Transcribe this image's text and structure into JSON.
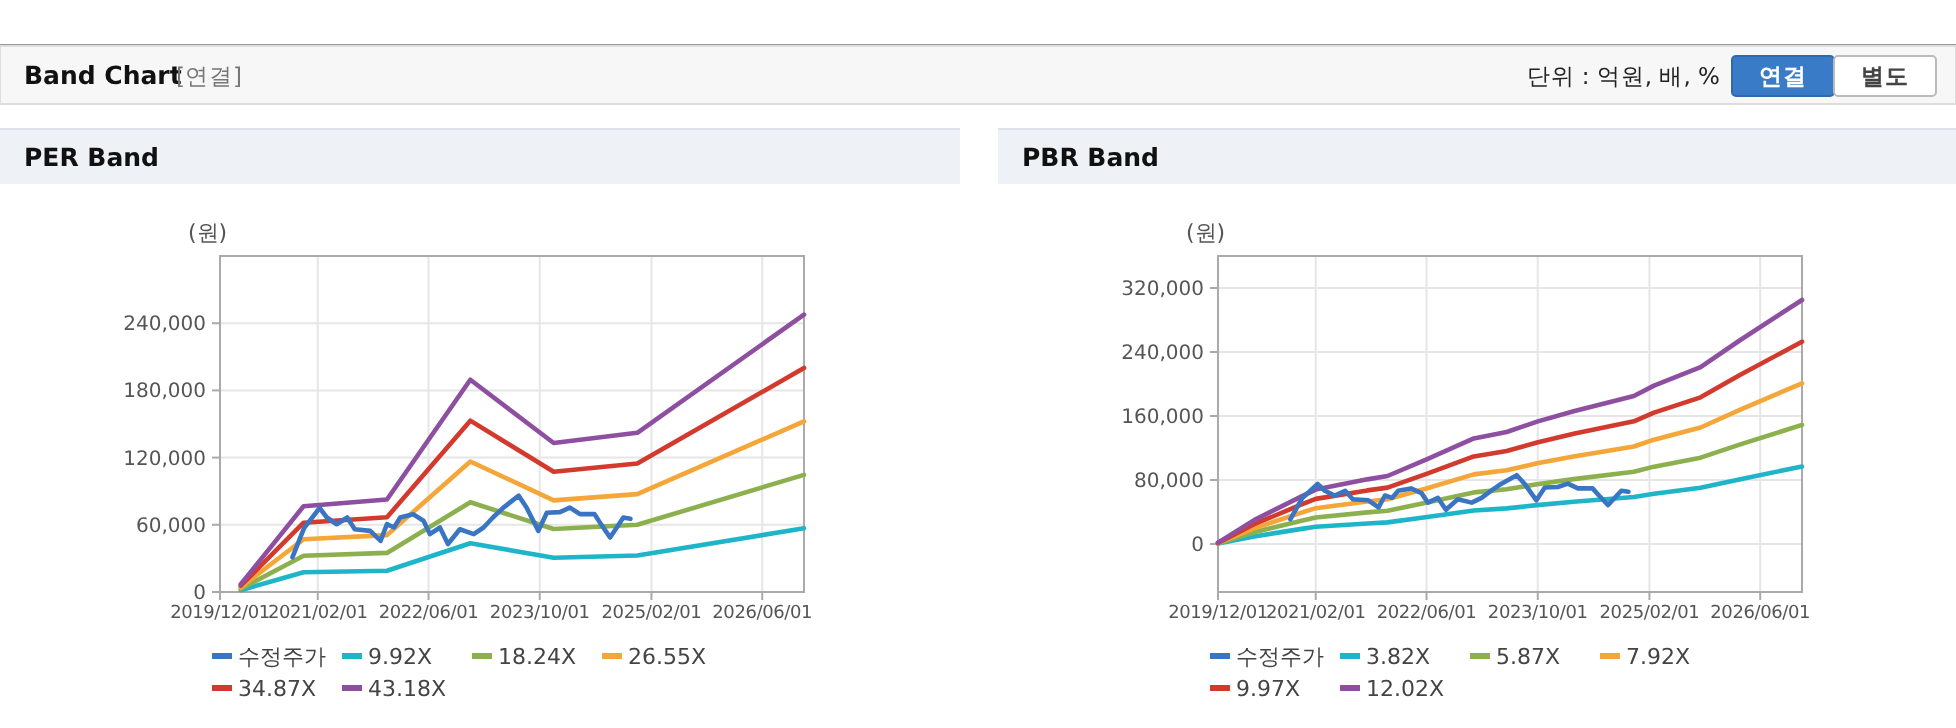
{
  "chart_data": [
    {
      "type": "other",
      "title": "Band Chart",
      "subtitle": "[연결]",
      "annotations": [
        "단위 : 억원, 배, %",
        "연결",
        "별도"
      ]
    },
    {
      "type": "line",
      "title": "PER Band",
      "ylabel": "(원)",
      "xlim": [
        "2019-12-01",
        "2026-12-01"
      ],
      "xticks": [
        {
          "value": "2019-12-01",
          "label": "2019/12/01"
        },
        {
          "value": "2021-02-01",
          "label": "2021/02/01"
        },
        {
          "value": "2022-06-01",
          "label": "2022/06/01"
        },
        {
          "value": "2023-10-01",
          "label": "2023/10/01"
        },
        {
          "value": "2025-02-01",
          "label": "2025/02/01"
        },
        {
          "value": "2026-06-01",
          "label": "2026/06/01"
        }
      ],
      "ylim": [
        0,
        300000
      ],
      "yticks": [
        0,
        {
          "value": 60000,
          "label": "60,000"
        },
        {
          "value": 120000,
          "label": "120,000"
        },
        {
          "value": 180000,
          "label": "180,000"
        },
        {
          "value": 240000,
          "label": "240,000"
        }
      ],
      "grid": true,
      "legend": "bottom",
      "series": [
        {
          "name": "수정주가",
          "color": "#3a75c4",
          "x": [
            "2020-10-13",
            "2020-12-03",
            "2021-02-09",
            "2021-03-13",
            "2021-04-25",
            "2021-06-10",
            "2021-07-13",
            "2021-09-19",
            "2021-11-03",
            "2021-12-01",
            "2022-01-01",
            "2022-01-28",
            "2022-03-25",
            "2022-05-10",
            "2022-06-07",
            "2022-07-21",
            "2022-08-25",
            "2022-10-16",
            "2022-12-16",
            "2023-01-28",
            "2023-03-10",
            "2023-04-25",
            "2023-07-01",
            "2023-08-04",
            "2023-09-25",
            "2023-11-01",
            "2023-12-28",
            "2024-02-10",
            "2024-03-25",
            "2024-05-28",
            "2024-06-25",
            "2024-08-04",
            "2024-10-01",
            "2024-11-01"
          ],
          "values": [
            31000,
            57000,
            75000,
            66500,
            60500,
            66500,
            56000,
            54600,
            45700,
            60600,
            57600,
            66500,
            69500,
            63600,
            51700,
            57600,
            42800,
            56000,
            51700,
            57600,
            66500,
            75400,
            86000,
            75400,
            54600,
            70700,
            71300,
            75400,
            69500,
            69500,
            60600,
            48700,
            66500,
            65300
          ]
        },
        {
          "name": "9.92X",
          "color": "#1fb5c9",
          "x": [
            "2020-03-01",
            "2020-12-01",
            "2021-12-01",
            "2022-12-01",
            "2023-12-01",
            "2024-12-01",
            "2026-12-01"
          ],
          "values": [
            1600,
            17600,
            19000,
            43500,
            30600,
            32600,
            56900
          ]
        },
        {
          "name": "18.24X",
          "color": "#8db04f",
          "x": [
            "2020-03-01",
            "2020-12-01",
            "2021-12-01",
            "2022-12-01",
            "2023-12-01",
            "2024-12-01",
            "2026-12-01"
          ],
          "values": [
            2900,
            32400,
            34900,
            80100,
            56200,
            60000,
            104600
          ]
        },
        {
          "name": "26.55X",
          "color": "#f5a638",
          "x": [
            "2020-03-01",
            "2020-12-01",
            "2021-12-01",
            "2022-12-01",
            "2023-12-01",
            "2024-12-01",
            "2026-12-01"
          ],
          "values": [
            4200,
            47100,
            50800,
            116500,
            81800,
            87400,
            152300
          ]
        },
        {
          "name": "34.87X",
          "color": "#d33a2e",
          "x": [
            "2020-03-01",
            "2020-12-01",
            "2021-12-01",
            "2022-12-01",
            "2023-12-01",
            "2024-12-01",
            "2026-12-01"
          ],
          "values": [
            5600,
            61900,
            66700,
            153000,
            107400,
            114700,
            200000
          ]
        },
        {
          "name": "43.18X",
          "color": "#8e4fa0",
          "x": [
            "2020-03-01",
            "2020-12-01",
            "2021-12-01",
            "2022-12-01",
            "2023-12-01",
            "2024-12-01",
            "2026-12-01"
          ],
          "values": [
            6900,
            76600,
            82600,
            189500,
            133000,
            142100,
            247700
          ]
        }
      ]
    },
    {
      "type": "line",
      "title": "PBR Band",
      "ylabel": "(원)",
      "xlim": [
        "2019-12-01",
        "2026-12-01"
      ],
      "xticks": [
        {
          "value": "2019-12-01",
          "label": "2019/12/01"
        },
        {
          "value": "2021-02-01",
          "label": "2021/02/01"
        },
        {
          "value": "2022-06-01",
          "label": "2022/06/01"
        },
        {
          "value": "2023-10-01",
          "label": "2023/10/01"
        },
        {
          "value": "2025-02-01",
          "label": "2025/02/01"
        },
        {
          "value": "2026-06-01",
          "label": "2026/06/01"
        }
      ],
      "ylim": [
        -60000,
        360000
      ],
      "yticks": [
        0,
        {
          "value": 80000,
          "label": "80,000"
        },
        {
          "value": 160000,
          "label": "160,000"
        },
        {
          "value": 240000,
          "label": "240,000"
        },
        {
          "value": 320000,
          "label": "320,000"
        }
      ],
      "grid": true,
      "legend": "bottom",
      "series": [
        {
          "name": "수정주가",
          "color": "#3a75c4",
          "x": [
            "2020-10-13",
            "2020-12-03",
            "2021-02-09",
            "2021-03-13",
            "2021-04-25",
            "2021-06-10",
            "2021-07-13",
            "2021-09-19",
            "2021-11-03",
            "2021-12-01",
            "2022-01-01",
            "2022-01-28",
            "2022-03-25",
            "2022-05-10",
            "2022-06-07",
            "2022-07-21",
            "2022-08-25",
            "2022-10-16",
            "2022-12-16",
            "2023-01-28",
            "2023-03-10",
            "2023-04-25",
            "2023-07-01",
            "2023-08-04",
            "2023-09-25",
            "2023-11-01",
            "2023-12-28",
            "2024-02-10",
            "2024-03-25",
            "2024-05-28",
            "2024-06-25",
            "2024-08-04",
            "2024-10-01",
            "2024-11-01"
          ],
          "values": [
            31000,
            57000,
            75000,
            66500,
            60500,
            66500,
            56000,
            54600,
            45700,
            60600,
            57600,
            66500,
            69500,
            63600,
            51700,
            57600,
            42800,
            56000,
            51700,
            57600,
            66500,
            75400,
            86000,
            75400,
            54600,
            70700,
            71300,
            75400,
            69500,
            69500,
            60600,
            48700,
            66500,
            65300
          ]
        },
        {
          "name": "3.82X",
          "color": "#1fb5c9",
          "x": [
            "2019-12-01",
            "2020-05-07",
            "2020-12-01",
            "2021-02-01",
            "2021-09-15",
            "2021-12-12",
            "2022-06-04",
            "2022-12-25",
            "2023-05-18",
            "2023-09-28",
            "2024-03-06",
            "2024-11-25",
            "2025-02-21",
            "2025-09-13",
            "2026-03-06",
            "2026-12-01"
          ],
          "values": [
            500,
            9500,
            18900,
            21600,
            25700,
            27000,
            33700,
            41900,
            44500,
            48600,
            52800,
            58800,
            62900,
            70200,
            81000,
            96900
          ]
        },
        {
          "name": "5.87X",
          "color": "#8db04f",
          "x": [
            "2019-12-01",
            "2020-05-07",
            "2020-12-01",
            "2021-02-01",
            "2021-09-15",
            "2021-12-12",
            "2022-06-04",
            "2022-12-25",
            "2023-05-18",
            "2023-09-28",
            "2024-03-06",
            "2024-11-25",
            "2025-02-21",
            "2025-09-13",
            "2026-03-06",
            "2026-12-01"
          ],
          "values": [
            800,
            14600,
            29100,
            33200,
            39500,
            41500,
            51800,
            64500,
            68400,
            74700,
            81100,
            90300,
            96700,
            107900,
            124500,
            148900
          ]
        },
        {
          "name": "7.92X",
          "color": "#f5a638",
          "x": [
            "2019-12-01",
            "2020-05-07",
            "2020-12-01",
            "2021-02-01",
            "2021-09-15",
            "2021-12-12",
            "2022-06-04",
            "2022-12-25",
            "2023-05-18",
            "2023-09-28",
            "2024-03-06",
            "2024-11-25",
            "2025-02-21",
            "2025-09-13",
            "2026-03-06",
            "2026-12-01"
          ],
          "values": [
            1100,
            19600,
            39300,
            44800,
            53200,
            56000,
            69800,
            87000,
            92300,
            100800,
            109400,
            121900,
            130400,
            145600,
            168000,
            200900
          ]
        },
        {
          "name": "9.97X",
          "color": "#d33a2e",
          "x": [
            "2019-12-01",
            "2020-05-07",
            "2020-12-01",
            "2021-02-01",
            "2021-09-15",
            "2021-12-12",
            "2022-06-04",
            "2022-12-25",
            "2023-05-18",
            "2023-09-28",
            "2024-03-06",
            "2024-11-25",
            "2025-02-21",
            "2025-09-13",
            "2026-03-06",
            "2026-12-01"
          ],
          "values": [
            1400,
            24700,
            49400,
            56400,
            67000,
            70500,
            87900,
            109500,
            116200,
            126900,
            137700,
            153400,
            164200,
            183300,
            211500,
            252900
          ]
        },
        {
          "name": "12.02X",
          "color": "#8e4fa0",
          "x": [
            "2019-12-01",
            "2020-05-07",
            "2020-12-01",
            "2021-02-01",
            "2021-09-15",
            "2021-12-12",
            "2022-06-04",
            "2022-12-25",
            "2023-05-18",
            "2023-09-28",
            "2024-03-06",
            "2024-11-25",
            "2025-02-21",
            "2025-09-13",
            "2026-03-06",
            "2026-12-01"
          ],
          "values": [
            1700,
            29800,
            59600,
            68000,
            80800,
            85000,
            106000,
            132000,
            140000,
            153000,
            166000,
            185000,
            198000,
            221000,
            255000,
            305000
          ]
        }
      ]
    }
  ]
}
